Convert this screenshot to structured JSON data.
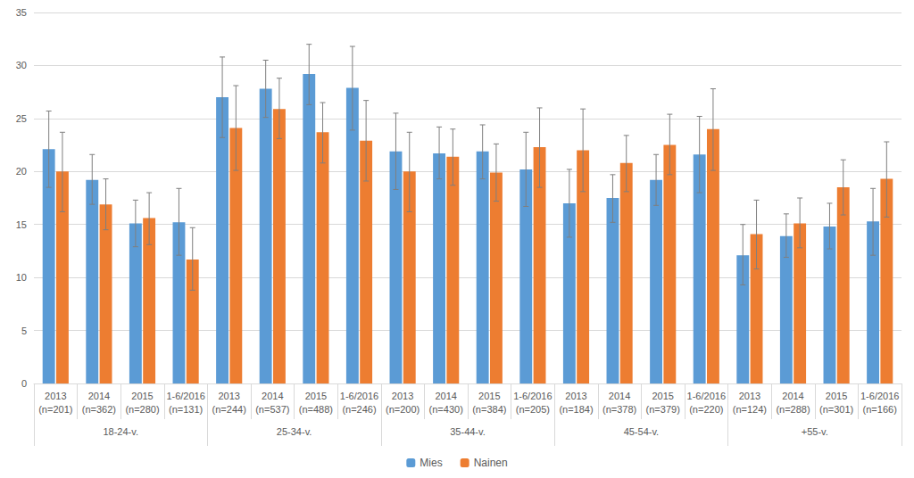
{
  "chart_data": {
    "type": "bar",
    "categories": [
      "2013\n(n=201)",
      "2014\n(n=362)",
      "2015\n(n=280)",
      "1-6/2016\n(n=131)",
      "2013\n(n=244)",
      "2014\n(n=537)",
      "2015\n(n=488)",
      "1-6/2016\n(n=246)",
      "2013\n(n=200)",
      "2014\n(n=430)",
      "2015\n(n=384)",
      "1-6/2016\n(n=205)",
      "2013\n(n=184)",
      "2014\n(n=378)",
      "2015\n(n=379)",
      "1-6/2016\n(n=220)",
      "2013\n(n=124)",
      "2014\n(n=288)",
      "2015\n(n=301)",
      "1-6/2016\n(n=166)"
    ],
    "category_groups": [
      "18-24-v.",
      "18-24-v.",
      "18-24-v.",
      "18-24-v.",
      "25-34-v.",
      "25-34-v.",
      "25-34-v.",
      "25-34-v.",
      "35-44-v.",
      "35-44-v.",
      "35-44-v.",
      "35-44-v.",
      "45-54-v.",
      "45-54-v.",
      "45-54-v.",
      "45-54-v.",
      "+55-v.",
      "+55-v.",
      "+55-v.",
      "+55-v."
    ],
    "series": [
      {
        "name": "Mies",
        "color": "#5b9bd5",
        "values": [
          22.1,
          19.2,
          15.1,
          15.2,
          27.0,
          27.8,
          29.2,
          27.9,
          21.9,
          21.7,
          21.9,
          20.2,
          17.0,
          17.5,
          19.2,
          21.6,
          12.1,
          13.9,
          14.8,
          15.3
        ],
        "error_low": [
          18.5,
          16.9,
          12.9,
          12.1,
          23.2,
          25.1,
          26.3,
          23.9,
          18.3,
          19.3,
          19.3,
          16.7,
          13.8,
          15.2,
          16.8,
          18.0,
          9.3,
          11.9,
          12.7,
          12.1
        ],
        "error_high": [
          25.7,
          21.6,
          17.3,
          18.4,
          30.8,
          30.5,
          32.0,
          31.8,
          25.5,
          24.2,
          24.4,
          23.7,
          20.2,
          19.7,
          21.6,
          25.2,
          15.0,
          16.0,
          17.0,
          18.4
        ]
      },
      {
        "name": "Nainen",
        "color": "#ed7d31",
        "values": [
          20.0,
          16.9,
          15.6,
          11.7,
          24.1,
          25.9,
          23.7,
          22.9,
          20.0,
          21.4,
          19.9,
          22.3,
          22.0,
          20.8,
          22.5,
          24.0,
          14.1,
          15.1,
          18.5,
          19.3
        ],
        "error_low": [
          16.2,
          14.5,
          13.1,
          8.8,
          20.1,
          23.1,
          20.8,
          19.1,
          16.2,
          18.7,
          17.2,
          18.5,
          18.1,
          18.1,
          19.7,
          20.1,
          10.8,
          12.8,
          15.9,
          15.7
        ],
        "error_high": [
          23.7,
          19.3,
          18.0,
          14.7,
          28.1,
          28.8,
          26.5,
          26.7,
          23.7,
          24.0,
          22.6,
          26.0,
          25.9,
          23.4,
          25.4,
          27.8,
          17.3,
          17.5,
          21.1,
          22.8
        ]
      }
    ],
    "ylim": [
      0,
      35
    ],
    "yticks": [
      0,
      5,
      10,
      15,
      20,
      25,
      30,
      35
    ],
    "grid": true,
    "legend": "bottom"
  }
}
